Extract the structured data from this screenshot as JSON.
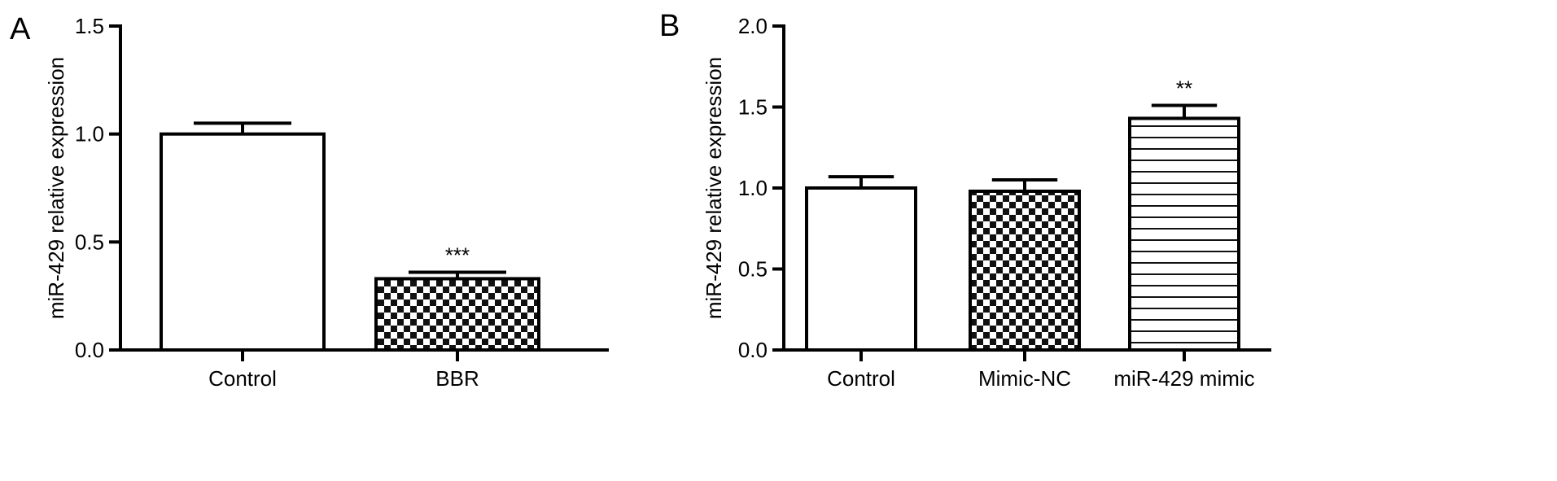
{
  "chart_data": [
    {
      "panel_label": "A",
      "type": "bar",
      "categories": [
        "Control",
        "BBR"
      ],
      "values": [
        1.0,
        0.33
      ],
      "errors": [
        0.05,
        0.03
      ],
      "annotations": [
        "",
        "***"
      ],
      "patterns": [
        "none",
        "checker"
      ],
      "ylabel": "miR-429 relative expression",
      "ylim": [
        0,
        1.5
      ],
      "yticks": [
        0.0,
        0.5,
        1.0,
        1.5
      ],
      "ytick_labels": [
        "0.0",
        "0.5",
        "1.0",
        "1.5"
      ],
      "grid": false,
      "legend": "none"
    },
    {
      "panel_label": "B",
      "type": "bar",
      "categories": [
        "Control",
        "Mimic-NC",
        "miR-429 mimic"
      ],
      "values": [
        1.0,
        0.98,
        1.43
      ],
      "errors": [
        0.07,
        0.07,
        0.08
      ],
      "annotations": [
        "",
        "",
        "**"
      ],
      "patterns": [
        "none",
        "checker",
        "hlines"
      ],
      "ylabel": "miR-429 relative expression",
      "ylim": [
        0,
        2.0
      ],
      "yticks": [
        0.0,
        0.5,
        1.0,
        1.5,
        2.0
      ],
      "ytick_labels": [
        "0.0",
        "0.5",
        "1.0",
        "1.5",
        "2.0"
      ],
      "grid": false,
      "legend": "none"
    }
  ]
}
